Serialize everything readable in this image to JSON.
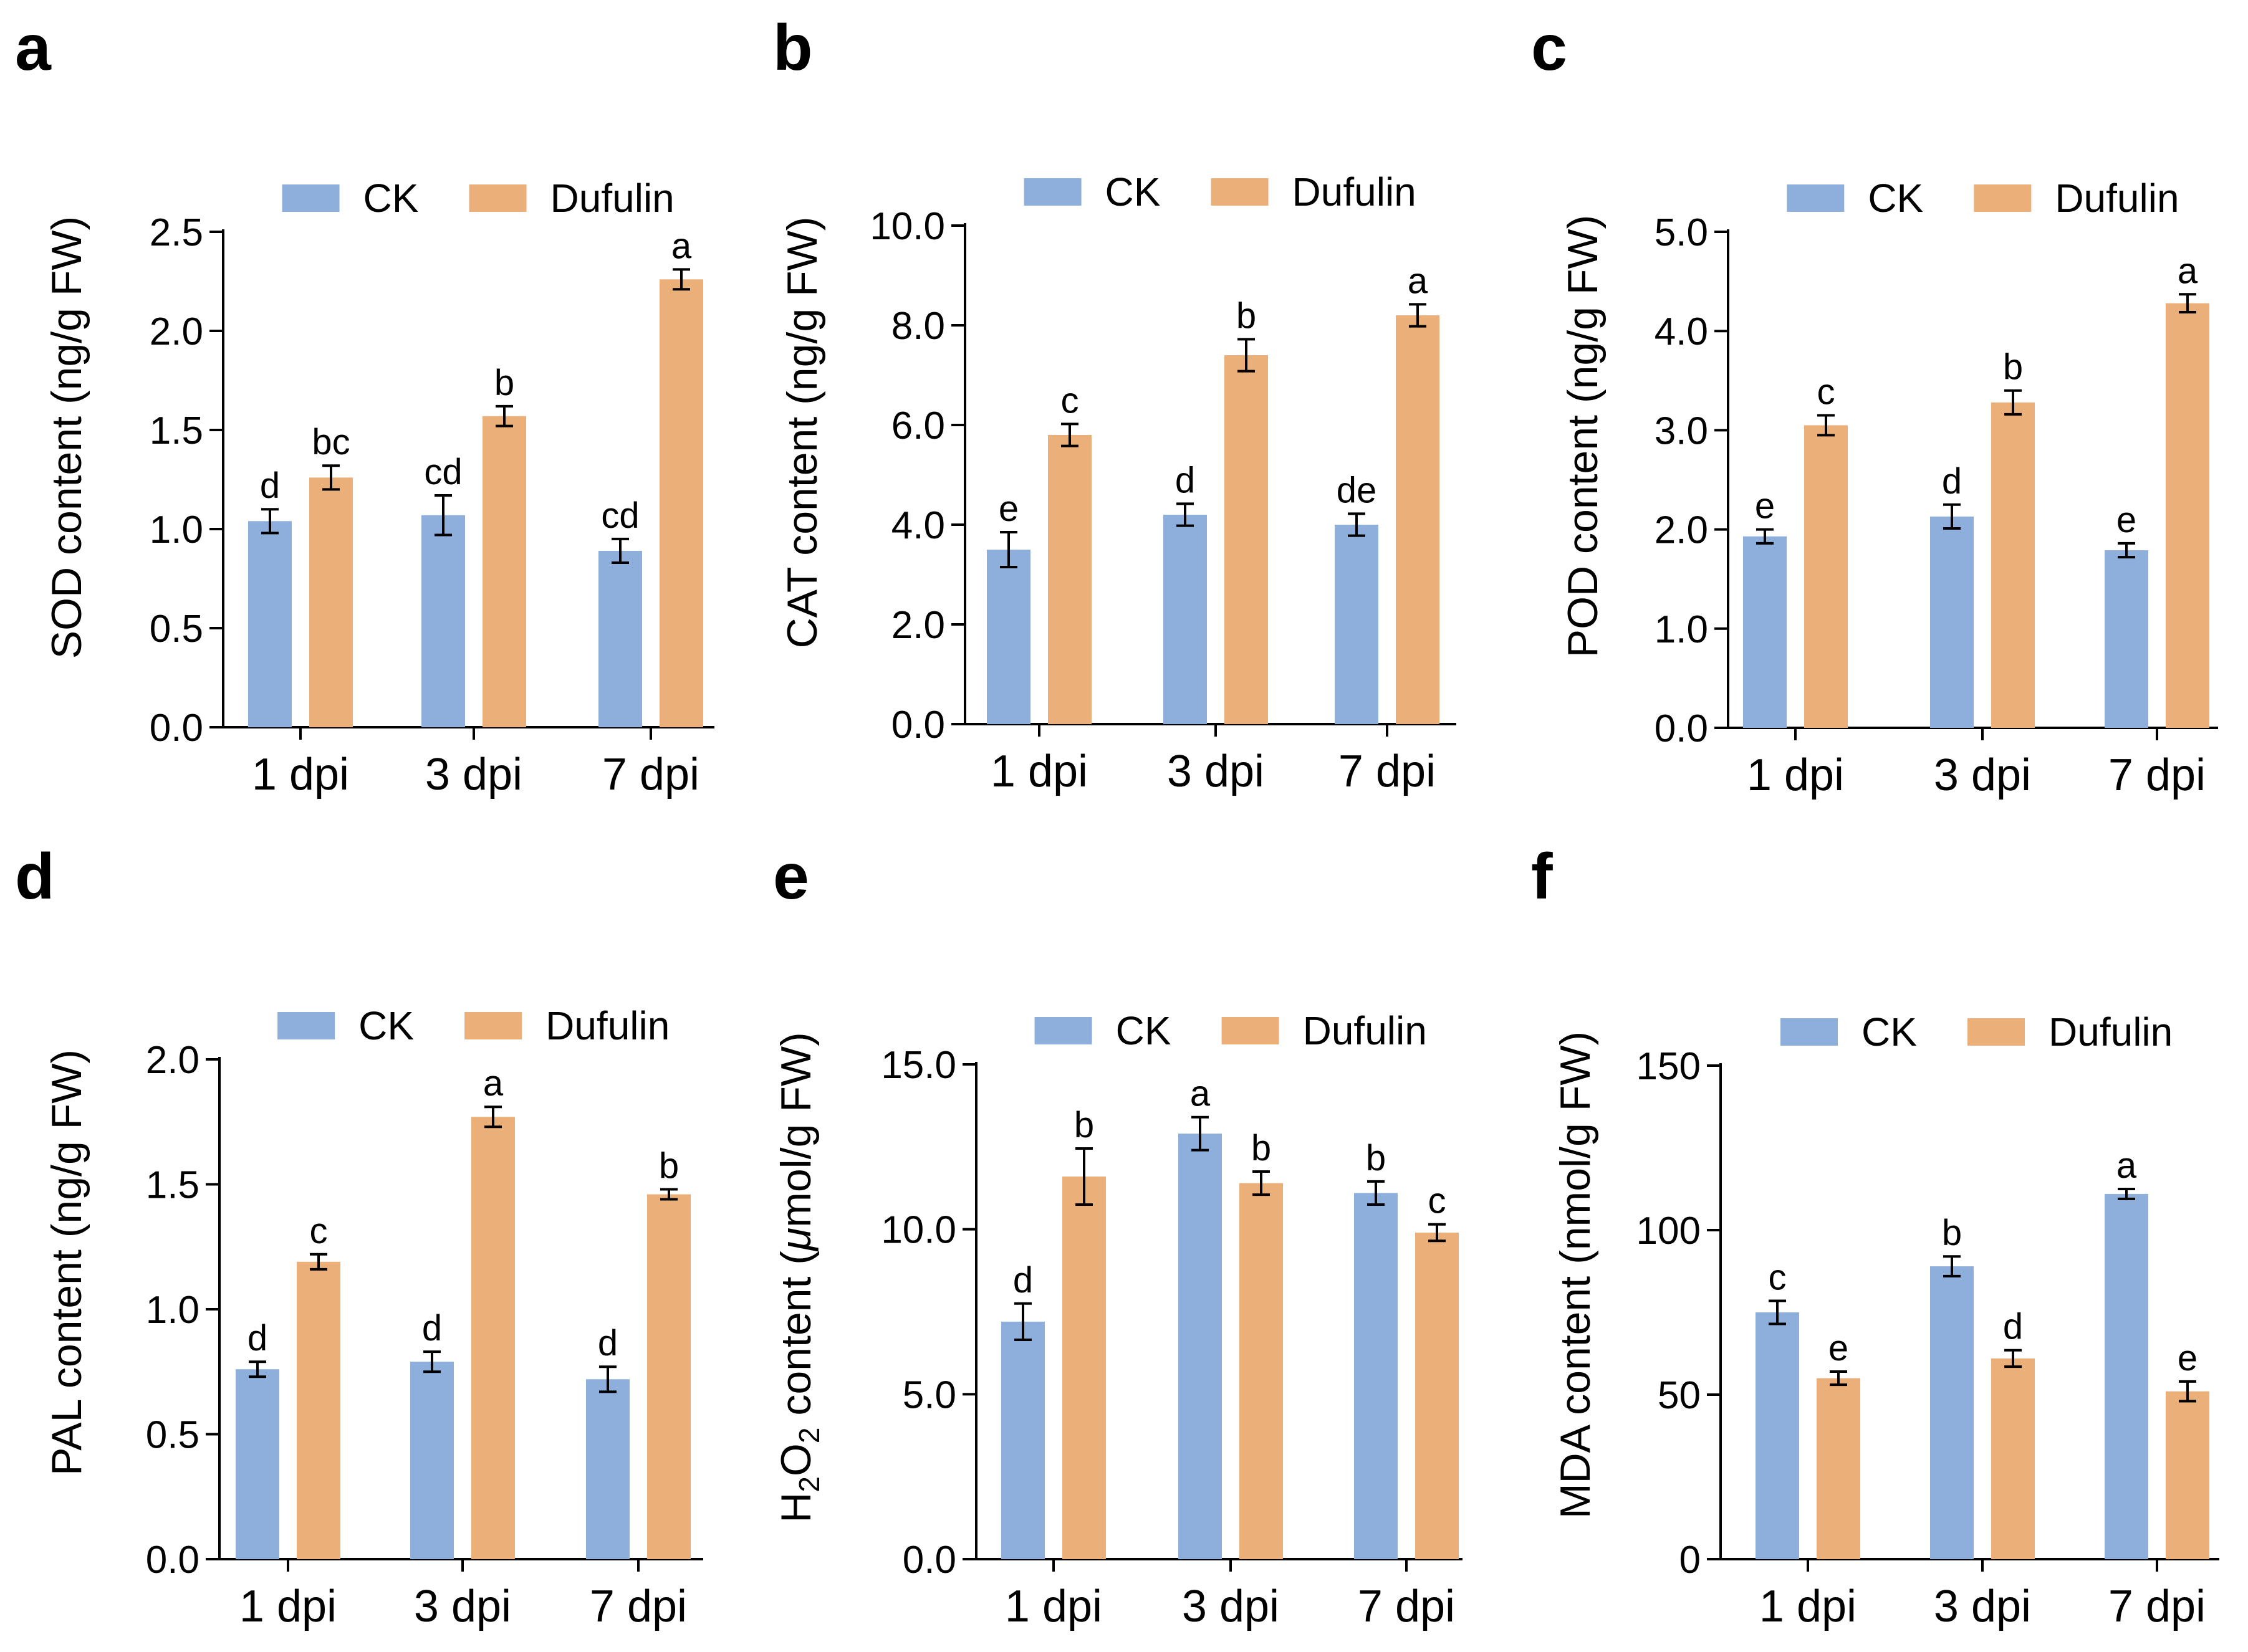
{
  "figure": {
    "legend_labels": [
      "CK",
      "Dufulin"
    ],
    "colors": {
      "CK": "#8eafdb",
      "Dufulin": "#ebb07a"
    }
  },
  "chart_data": [
    {
      "panel": "a",
      "type": "bar",
      "ylabel": "SOD content (ng/g FW)",
      "ylim": [
        0,
        2.5
      ],
      "yticks": [
        "0.0",
        "0.5",
        "1.0",
        "1.5",
        "2.0",
        "2.5"
      ],
      "categories": [
        "1 dpi",
        "3 dpi",
        "7 dpi"
      ],
      "series": [
        {
          "name": "CK",
          "values": [
            1.04,
            1.07,
            0.89
          ],
          "errors": [
            0.06,
            0.1,
            0.06
          ],
          "letters": [
            "d",
            "cd",
            "cd"
          ]
        },
        {
          "name": "Dufulin",
          "values": [
            1.26,
            1.57,
            2.26
          ],
          "errors": [
            0.06,
            0.05,
            0.05
          ],
          "letters": [
            "bc",
            "b",
            "a"
          ]
        }
      ]
    },
    {
      "panel": "b",
      "type": "bar",
      "ylabel": "CAT content (ng/g FW)",
      "ylim": [
        0,
        10
      ],
      "yticks": [
        "0.0",
        "2.0",
        "4.0",
        "6.0",
        "8.0",
        "10.0"
      ],
      "categories": [
        "1 dpi",
        "3 dpi",
        "7 dpi"
      ],
      "series": [
        {
          "name": "CK",
          "values": [
            3.5,
            4.2,
            4.0
          ],
          "errors": [
            0.35,
            0.22,
            0.22
          ],
          "letters": [
            "e",
            "d",
            "de"
          ]
        },
        {
          "name": "Dufulin",
          "values": [
            5.8,
            7.4,
            8.2
          ],
          "errors": [
            0.22,
            0.32,
            0.22
          ],
          "letters": [
            "c",
            "b",
            "a"
          ]
        }
      ]
    },
    {
      "panel": "c",
      "type": "bar",
      "ylabel": "POD content (ng/g FW)",
      "ylim": [
        0,
        5
      ],
      "yticks": [
        "0.0",
        "1.0",
        "2.0",
        "3.0",
        "4.0",
        "5.0"
      ],
      "categories": [
        "1 dpi",
        "3 dpi",
        "7 dpi"
      ],
      "series": [
        {
          "name": "CK",
          "values": [
            1.93,
            2.13,
            1.79
          ],
          "errors": [
            0.07,
            0.12,
            0.07
          ],
          "letters": [
            "e",
            "d",
            "e"
          ]
        },
        {
          "name": "Dufulin",
          "values": [
            3.05,
            3.28,
            4.28
          ],
          "errors": [
            0.1,
            0.12,
            0.09
          ],
          "letters": [
            "c",
            "b",
            "a"
          ]
        }
      ]
    },
    {
      "panel": "d",
      "type": "bar",
      "ylabel": "PAL content (ng/g FW)",
      "ylim": [
        0,
        2.0
      ],
      "yticks": [
        "0.0",
        "0.5",
        "1.0",
        "1.5",
        "2.0"
      ],
      "categories": [
        "1 dpi",
        "3 dpi",
        "7 dpi"
      ],
      "series": [
        {
          "name": "CK",
          "values": [
            0.76,
            0.79,
            0.72
          ],
          "errors": [
            0.03,
            0.04,
            0.05
          ],
          "letters": [
            "d",
            "d",
            "d"
          ]
        },
        {
          "name": "Dufulin",
          "values": [
            1.19,
            1.77,
            1.46
          ],
          "errors": [
            0.03,
            0.04,
            0.02
          ],
          "letters": [
            "c",
            "a",
            "b"
          ]
        }
      ]
    },
    {
      "panel": "e",
      "type": "bar",
      "ylabel_main": "H",
      "ylabel_sub1": "2",
      "ylabel_mid": "O",
      "ylabel_sub2": "2",
      "ylabel_prefix": " content (",
      "ylabel_mu": "μ",
      "ylabel_suffix": "mol/g FW)",
      "ylim": [
        0,
        15
      ],
      "yticks": [
        "0.0",
        "5.0",
        "10.0",
        "15.0"
      ],
      "categories": [
        "1 dpi",
        "3 dpi",
        "7 dpi"
      ],
      "series": [
        {
          "name": "CK",
          "values": [
            7.2,
            12.9,
            11.1
          ],
          "errors": [
            0.55,
            0.5,
            0.35
          ],
          "letters": [
            "d",
            "a",
            "b"
          ]
        },
        {
          "name": "Dufulin",
          "values": [
            11.6,
            11.4,
            9.9
          ],
          "errors": [
            0.85,
            0.35,
            0.25
          ],
          "letters": [
            "b",
            "b",
            "c"
          ]
        }
      ]
    },
    {
      "panel": "f",
      "type": "bar",
      "ylabel": "MDA content (nmol/g FW)",
      "ylim": [
        0,
        150
      ],
      "yticks": [
        "0",
        "50",
        "100",
        "150"
      ],
      "categories": [
        "1 dpi",
        "3 dpi",
        "7 dpi"
      ],
      "series": [
        {
          "name": "CK",
          "values": [
            75,
            89,
            111
          ],
          "errors": [
            3.5,
            3,
            1.5
          ],
          "letters": [
            "c",
            "b",
            "a"
          ]
        },
        {
          "name": "Dufulin",
          "values": [
            55,
            61,
            51
          ],
          "errors": [
            2,
            2.5,
            3
          ],
          "letters": [
            "e",
            "d",
            "e"
          ]
        }
      ]
    }
  ]
}
